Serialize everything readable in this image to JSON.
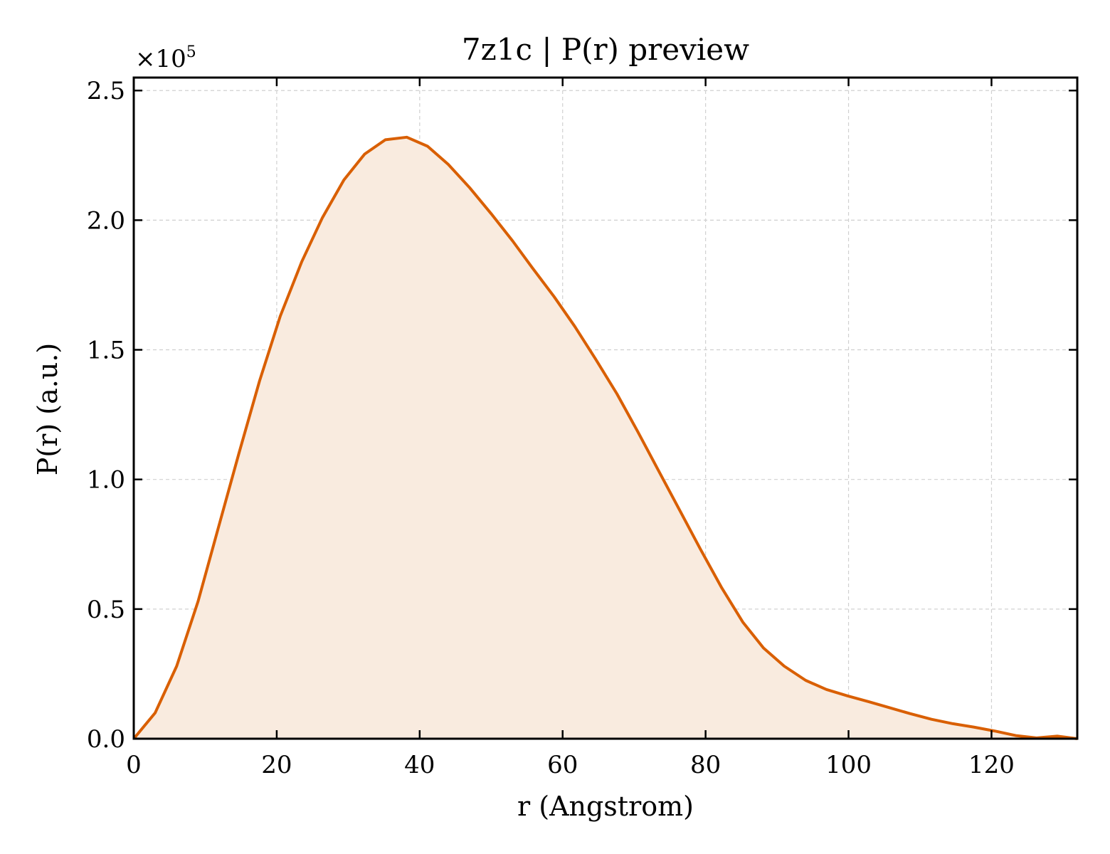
{
  "chart_data": {
    "type": "area",
    "title": "7z1c | P(r) preview",
    "xlabel": "r (Angstrom)",
    "ylabel": "P(r) (a.u.)",
    "y_multiplier_label": "×10",
    "y_multiplier_exponent": "5",
    "xlim": [
      0,
      132
    ],
    "ylim": [
      0,
      2.55
    ],
    "y_scale_factor": 100000,
    "grid": true,
    "x_ticks": [
      0,
      20,
      40,
      60,
      80,
      100,
      120
    ],
    "x_tick_labels": [
      "0",
      "20",
      "40",
      "60",
      "80",
      "100",
      "120"
    ],
    "y_ticks": [
      0,
      0.5,
      1.0,
      1.5,
      2.0,
      2.5
    ],
    "y_tick_labels": [
      "0.0",
      "0.5",
      "1.0",
      "1.5",
      "2.0",
      "2.5"
    ],
    "line_color": "#d95f02",
    "fill_color": "#f9ebdf",
    "series": [
      {
        "x": [
          0,
          3,
          6,
          9,
          11.8,
          14.7,
          17.6,
          20.5,
          23.5,
          26.4,
          29.4,
          32.3,
          35.2,
          38.2,
          41.1,
          44,
          47,
          50,
          53,
          55.8,
          58.8,
          61.7,
          64.6,
          67.6,
          70.5,
          73.4,
          76.4,
          79.3,
          82.2,
          85.2,
          88.1,
          91,
          94,
          96.9,
          99.9,
          102.8,
          105.7,
          108.6,
          111.6,
          114.6,
          117.5,
          120.4,
          123.4,
          126.3,
          129.2,
          132
        ],
        "y": [
          0.0,
          0.1,
          0.28,
          0.53,
          0.81,
          1.1,
          1.38,
          1.63,
          1.84,
          2.01,
          2.155,
          2.255,
          2.31,
          2.32,
          2.285,
          2.215,
          2.125,
          2.025,
          1.92,
          1.815,
          1.705,
          1.59,
          1.465,
          1.33,
          1.185,
          1.035,
          0.88,
          0.73,
          0.585,
          0.45,
          0.35,
          0.28,
          0.225,
          0.19,
          0.165,
          0.143,
          0.12,
          0.097,
          0.075,
          0.058,
          0.045,
          0.03,
          0.012,
          0.003,
          0.01,
          0.0
        ]
      }
    ]
  }
}
